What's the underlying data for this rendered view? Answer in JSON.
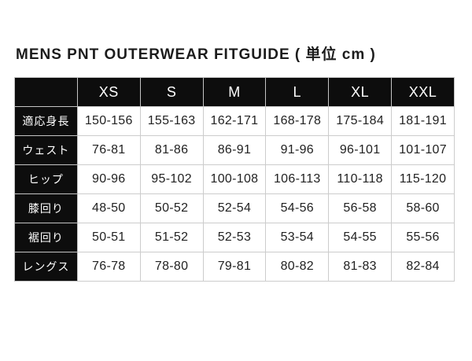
{
  "title": {
    "brand": "MENS PNT",
    "rest": " OUTERWEAR FITGUIDE ",
    "unit": "( 単位 cm )"
  },
  "table": {
    "corner": "",
    "columns": [
      "XS",
      "S",
      "M",
      "L",
      "XL",
      "XXL"
    ],
    "rows": [
      {
        "label": "適応身長",
        "values": [
          "150-156",
          "155-163",
          "162-171",
          "168-178",
          "175-184",
          "181-191"
        ]
      },
      {
        "label": "ウェスト",
        "values": [
          "76-81",
          "81-86",
          "86-91",
          "91-96",
          "96-101",
          "101-107"
        ]
      },
      {
        "label": "ヒップ",
        "values": [
          "90-96",
          "95-102",
          "100-108",
          "106-113",
          "110-118",
          "115-120"
        ]
      },
      {
        "label": "膝回り",
        "values": [
          "48-50",
          "50-52",
          "52-54",
          "54-56",
          "56-58",
          "58-60"
        ]
      },
      {
        "label": "裾回り",
        "values": [
          "50-51",
          "51-52",
          "52-53",
          "53-54",
          "54-55",
          "55-56"
        ]
      },
      {
        "label": "レングス",
        "values": [
          "76-78",
          "78-80",
          "79-81",
          "80-82",
          "81-83",
          "82-84"
        ]
      }
    ]
  },
  "colors": {
    "header_bg": "#0d0d0d",
    "header_text": "#ffffff",
    "cell_border": "#cccccc",
    "cell_text": "#222222",
    "page_bg": "#ffffff"
  },
  "chart_data": {
    "type": "table",
    "title": "MENS PNT OUTERWEAR FITGUIDE ( 単位 cm )",
    "unit": "cm",
    "columns": [
      "XS",
      "S",
      "M",
      "L",
      "XL",
      "XXL"
    ],
    "row_labels": [
      "適応身長",
      "ウェスト",
      "ヒップ",
      "膝回り",
      "裾回り",
      "レングス"
    ],
    "rows": [
      [
        "150-156",
        "155-163",
        "162-171",
        "168-178",
        "175-184",
        "181-191"
      ],
      [
        "76-81",
        "81-86",
        "86-91",
        "91-96",
        "96-101",
        "101-107"
      ],
      [
        "90-96",
        "95-102",
        "100-108",
        "106-113",
        "110-118",
        "115-120"
      ],
      [
        "48-50",
        "50-52",
        "52-54",
        "54-56",
        "56-58",
        "58-60"
      ],
      [
        "50-51",
        "51-52",
        "52-53",
        "53-54",
        "54-55",
        "55-56"
      ],
      [
        "76-78",
        "78-80",
        "79-81",
        "80-82",
        "81-83",
        "82-84"
      ]
    ]
  }
}
